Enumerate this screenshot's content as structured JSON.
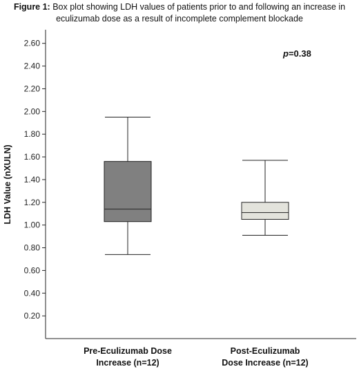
{
  "figure": {
    "label": "Figure 1:",
    "caption_line1": " Box plot showing LDH values of patients prior to and following an increase in",
    "caption_line2": "eculizumab dose as a result of incomplete complement blockade"
  },
  "colors": {
    "box_pre": "#808080",
    "box_post": "#e3e3dc",
    "stroke": "#222222"
  },
  "chart_data": {
    "type": "box",
    "ylabel": "LDH Value (nXULN)",
    "xlabel": "",
    "ylim": [
      0.0,
      2.72
    ],
    "yticks": [
      0.2,
      0.4,
      0.6,
      0.8,
      1.0,
      1.2,
      1.4,
      1.6,
      1.8,
      2.0,
      2.2,
      2.4,
      2.6
    ],
    "grid": false,
    "annotation": {
      "text_italic": "p",
      "text": "=0.38"
    },
    "categories": [
      {
        "line1": "Pre-Eculizumab Dose",
        "line2": "Increase (n=12)"
      },
      {
        "line1": "Post-Eculizumab",
        "line2": "Dose Increase (n=12)"
      }
    ],
    "boxes": [
      {
        "whisker_low": 0.74,
        "q1": 1.03,
        "median": 1.14,
        "q3": 1.56,
        "whisker_high": 1.95
      },
      {
        "whisker_low": 0.91,
        "q1": 1.05,
        "median": 1.11,
        "q3": 1.2,
        "whisker_high": 1.57
      }
    ]
  }
}
